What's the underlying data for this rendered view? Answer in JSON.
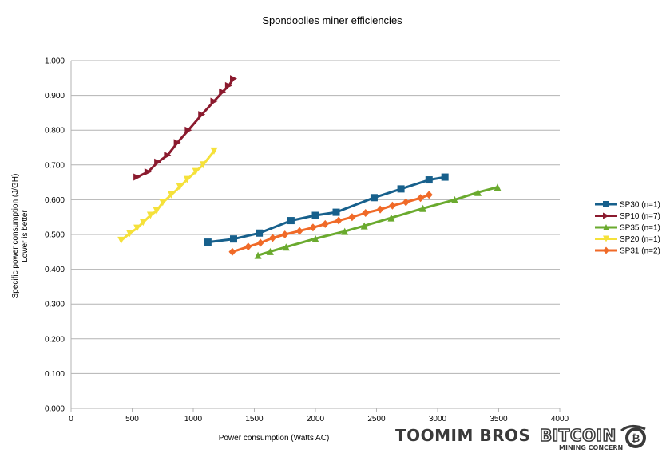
{
  "chart_data": {
    "type": "line",
    "title": "Spondoolies miner efficiencies",
    "xlabel": "Power consumption  (Watts AC)",
    "ylabel": "Specific power consumption (J/GH)",
    "ylabel2": "Lower is better",
    "xlim": [
      0,
      4000
    ],
    "ylim": [
      0,
      1.0
    ],
    "x_ticks": [
      "0",
      "500",
      "1000",
      "1500",
      "2000",
      "2500",
      "3000",
      "3500",
      "4000"
    ],
    "y_ticks": [
      "0.000",
      "0.100",
      "0.200",
      "0.300",
      "0.400",
      "0.500",
      "0.600",
      "0.700",
      "0.800",
      "0.900",
      "1.000"
    ],
    "grid": "horizontal",
    "legend_position": "right",
    "series": [
      {
        "name": "SP30 (n=1)",
        "color": "#17608c",
        "marker": "square",
        "points": [
          [
            1120,
            0.478
          ],
          [
            1330,
            0.487
          ],
          [
            1540,
            0.504
          ],
          [
            1800,
            0.54
          ],
          [
            2000,
            0.555
          ],
          [
            2170,
            0.564
          ],
          [
            2480,
            0.606
          ],
          [
            2700,
            0.631
          ],
          [
            2930,
            0.657
          ],
          [
            3060,
            0.665
          ]
        ]
      },
      {
        "name": "SP10 (n=7)",
        "color": "#8b1a2e",
        "marker": "triangle-right",
        "points": [
          [
            540,
            0.665
          ],
          [
            630,
            0.68
          ],
          [
            710,
            0.708
          ],
          [
            790,
            0.728
          ],
          [
            870,
            0.764
          ],
          [
            960,
            0.8
          ],
          [
            1070,
            0.845
          ],
          [
            1170,
            0.883
          ],
          [
            1240,
            0.91
          ],
          [
            1290,
            0.928
          ],
          [
            1330,
            0.948
          ]
        ]
      },
      {
        "name": "SP35 (n=1)",
        "color": "#6aaa2e",
        "marker": "triangle-up",
        "points": [
          [
            1530,
            0.44
          ],
          [
            1630,
            0.451
          ],
          [
            1760,
            0.464
          ],
          [
            2000,
            0.488
          ],
          [
            2240,
            0.509
          ],
          [
            2400,
            0.525
          ],
          [
            2620,
            0.548
          ],
          [
            2880,
            0.575
          ],
          [
            3140,
            0.6
          ],
          [
            3330,
            0.621
          ],
          [
            3490,
            0.636
          ]
        ]
      },
      {
        "name": "SP20 (n=1)",
        "color": "#f5e13a",
        "marker": "triangle-down",
        "points": [
          [
            410,
            0.483
          ],
          [
            480,
            0.503
          ],
          [
            540,
            0.518
          ],
          [
            590,
            0.535
          ],
          [
            650,
            0.555
          ],
          [
            700,
            0.568
          ],
          [
            750,
            0.592
          ],
          [
            820,
            0.614
          ],
          [
            890,
            0.637
          ],
          [
            950,
            0.658
          ],
          [
            1020,
            0.681
          ],
          [
            1080,
            0.7
          ],
          [
            1170,
            0.74
          ]
        ]
      },
      {
        "name": "SP31 (n=2)",
        "color": "#f06a28",
        "marker": "diamond",
        "points": [
          [
            1320,
            0.45
          ],
          [
            1450,
            0.465
          ],
          [
            1550,
            0.476
          ],
          [
            1650,
            0.49
          ],
          [
            1750,
            0.5
          ],
          [
            1870,
            0.51
          ],
          [
            1980,
            0.52
          ],
          [
            2080,
            0.53
          ],
          [
            2190,
            0.54
          ],
          [
            2300,
            0.55
          ],
          [
            2410,
            0.562
          ],
          [
            2530,
            0.572
          ],
          [
            2630,
            0.583
          ],
          [
            2740,
            0.593
          ],
          [
            2860,
            0.605
          ],
          [
            2930,
            0.614
          ]
        ]
      }
    ]
  },
  "logos": {
    "toomim": "TOOMIM BROS",
    "bitcoin": "BITCOIN",
    "bitcoin_sub": "MINING CONCERN"
  }
}
